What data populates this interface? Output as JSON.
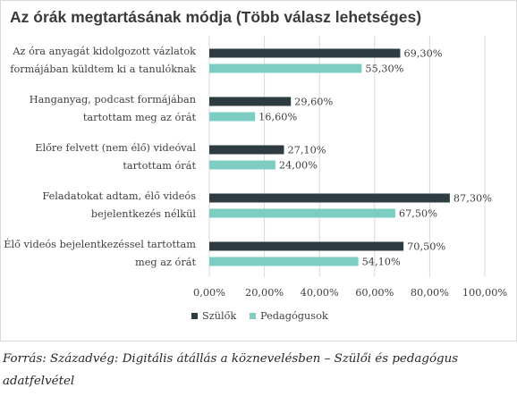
{
  "chart_data": {
    "type": "bar",
    "orientation": "horizontal",
    "title": "Az órák megtartásának módja (Több válasz lehetséges)",
    "categories": [
      [
        "Az óra anyagát kidolgozott vázlatok",
        "formájában küldtem ki a tanulóknak"
      ],
      [
        "Hanganyag, podcast formájában",
        "tartottam meg az órát"
      ],
      [
        "Előre felvett (nem élő) videóval",
        "tartottam órát"
      ],
      [
        "Feladatokat adtam, élő videós",
        "bejelentkezés nélkül"
      ],
      [
        "Élő videós bejelentkezéssel tartottam",
        "meg az órát"
      ]
    ],
    "series": [
      {
        "name": "Szülők",
        "color": "#2e3b40",
        "values": [
          69.3,
          29.6,
          27.1,
          87.3,
          70.5
        ],
        "labels": [
          "69,30%",
          "29,60%",
          "27,10%",
          "87,30%",
          "70,50%"
        ]
      },
      {
        "name": "Pedagógusok",
        "color": "#7ecdc3",
        "values": [
          55.3,
          16.6,
          24.0,
          67.5,
          54.1
        ],
        "labels": [
          "55,30%",
          "16,60%",
          "24,00%",
          "67,50%",
          "54,10%"
        ]
      }
    ],
    "xlim": [
      0,
      100
    ],
    "ticks": [
      "0,00%",
      "20,00%",
      "40,00%",
      "60,00%",
      "80,00%",
      "100,00%"
    ],
    "grid": true,
    "legend": "bottom"
  },
  "source": "Forrás: Századvég: Digitális átállás a köznevelésben – Szülői és pedagógus adatfelvétel"
}
